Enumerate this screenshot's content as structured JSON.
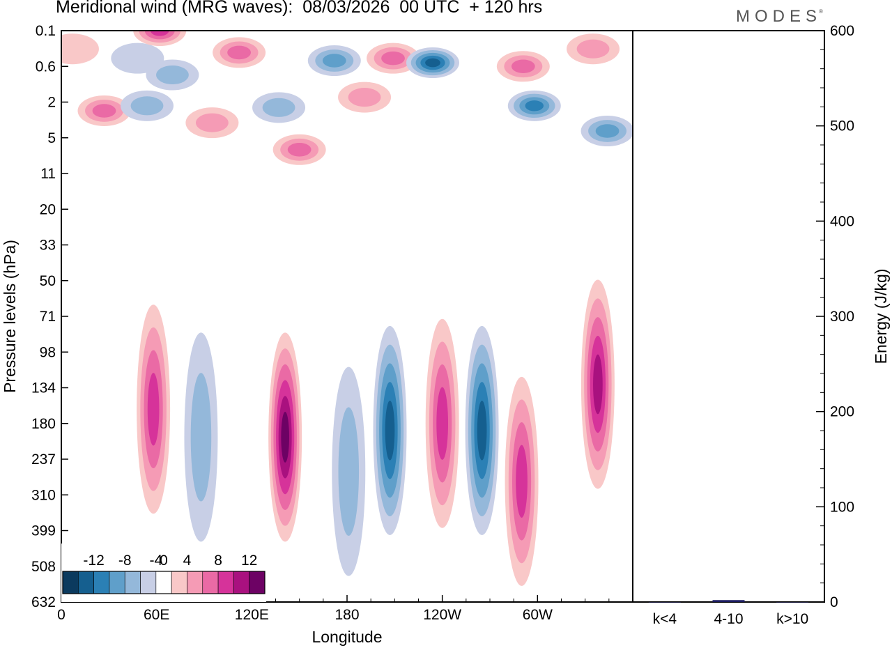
{
  "header": {
    "title": "Meridional wind (MRG waves):  08/03/2026  00 UTC  + 120 hrs",
    "brand": "MODES",
    "brand_mark": "®"
  },
  "chart_data": [
    {
      "type": "heatmap",
      "title": "Meridional wind (MRG waves):  08/03/2026  00 UTC  + 120 hrs",
      "xlabel": "Longitude",
      "ylabel": "Pressure levels (hPa)",
      "x_ticks": [
        "0",
        "60E",
        "120E",
        "180",
        "120W",
        "60W"
      ],
      "x_tick_values": [
        0,
        60,
        120,
        180,
        240,
        300
      ],
      "xlim": [
        0,
        360
      ],
      "y_ticks": [
        "0.1",
        "0.6",
        "2",
        "5",
        "11",
        "20",
        "33",
        "50",
        "71",
        "98",
        "134",
        "180",
        "237",
        "310",
        "399",
        "508",
        "632"
      ],
      "colorbar": {
        "labels": [
          "-12",
          "-8",
          "-4",
          "0",
          "4",
          "8",
          "12"
        ],
        "label_values": [
          -12,
          -8,
          -4,
          0,
          4,
          8,
          12
        ],
        "levels": [
          -14,
          -12,
          -10,
          -8,
          -6,
          -4,
          -2,
          2,
          4,
          6,
          8,
          10,
          12,
          14
        ],
        "colors": [
          "#0b3a5e",
          "#155f8f",
          "#2b80b5",
          "#5f9fca",
          "#94b8da",
          "#c8cfe6",
          "#ffffff",
          "#f9c8c8",
          "#f59bb5",
          "#ea6aa5",
          "#d6339a",
          "#a9117f",
          "#6d0264"
        ]
      },
      "features": [
        {
          "lon": 7,
          "level": 0.25,
          "value": 3
        },
        {
          "lon": 27,
          "level": 2.5,
          "value": 7
        },
        {
          "lon": 48,
          "level": 0.4,
          "value": -3
        },
        {
          "lon": 62,
          "level": 0.1,
          "value": 8
        },
        {
          "lon": 70,
          "level": 0.8,
          "value": -4
        },
        {
          "lon": 54,
          "level": 2.2,
          "value": -4
        },
        {
          "lon": 95,
          "level": 3.4,
          "value": 5
        },
        {
          "lon": 112,
          "level": 0.3,
          "value": 7
        },
        {
          "lon": 137,
          "level": 2.3,
          "value": -4
        },
        {
          "lon": 150,
          "level": 6.5,
          "value": 6
        },
        {
          "lon": 172,
          "level": 0.45,
          "value": -7
        },
        {
          "lon": 191,
          "level": 1.7,
          "value": 5
        },
        {
          "lon": 209,
          "level": 0.4,
          "value": 6
        },
        {
          "lon": 234,
          "level": 0.5,
          "value": -11
        },
        {
          "lon": 291,
          "level": 0.6,
          "value": 6
        },
        {
          "lon": 298,
          "level": 2.2,
          "value": -8
        },
        {
          "lon": 335,
          "level": 0.25,
          "value": 5
        },
        {
          "lon": 344,
          "level": 4.2,
          "value": -7
        },
        {
          "lon": 58,
          "level": 160,
          "value": 8
        },
        {
          "lon": 88,
          "level": 200,
          "value": -5
        },
        {
          "lon": 141,
          "level": 200,
          "value": 13
        },
        {
          "lon": 181,
          "level": 260,
          "value": -4
        },
        {
          "lon": 207,
          "level": 190,
          "value": -10
        },
        {
          "lon": 240,
          "level": 180,
          "value": 9
        },
        {
          "lon": 265,
          "level": 190,
          "value": -10
        },
        {
          "lon": 290,
          "level": 280,
          "value": 8
        },
        {
          "lon": 338,
          "level": 130,
          "value": 10
        }
      ]
    },
    {
      "type": "bar",
      "ylabel": "Energy (J/kg)",
      "categories": [
        "k<4",
        "4-10",
        "k>10"
      ],
      "values": [
        0,
        2,
        0
      ],
      "ylim": [
        0,
        600
      ],
      "y_ticks": [
        "0",
        "100",
        "200",
        "300",
        "400",
        "500",
        "600"
      ],
      "y_tick_values": [
        0,
        100,
        200,
        300,
        400,
        500,
        600
      ],
      "bar_color": "#1a1a5e"
    }
  ]
}
